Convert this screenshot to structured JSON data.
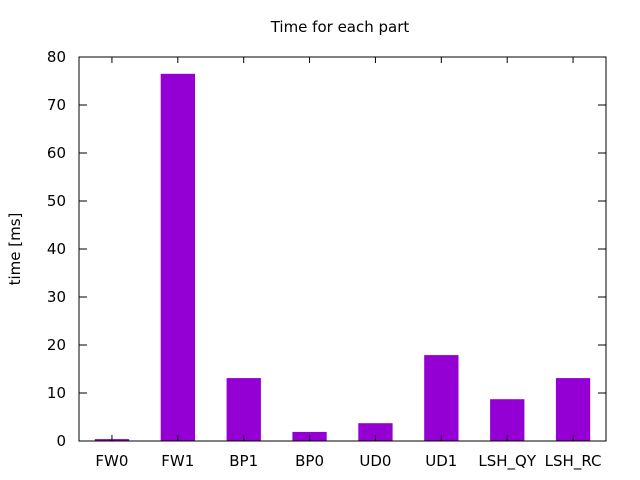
{
  "chart_data": {
    "type": "bar",
    "title": "Time for each part",
    "xlabel": "",
    "ylabel": "time [ms]",
    "categories": [
      "FW0",
      "FW1",
      "BP1",
      "BP0",
      "UD0",
      "UD1",
      "LSH_QY",
      "LSH_RC"
    ],
    "values": [
      0.4,
      76.5,
      13.1,
      1.9,
      3.7,
      17.9,
      8.7,
      13.1
    ],
    "ylim": [
      0,
      80
    ],
    "yticks": [
      0,
      10,
      20,
      30,
      40,
      50,
      60,
      70,
      80
    ],
    "grid": false,
    "legend": "none",
    "bar_color": "#9400d3"
  }
}
